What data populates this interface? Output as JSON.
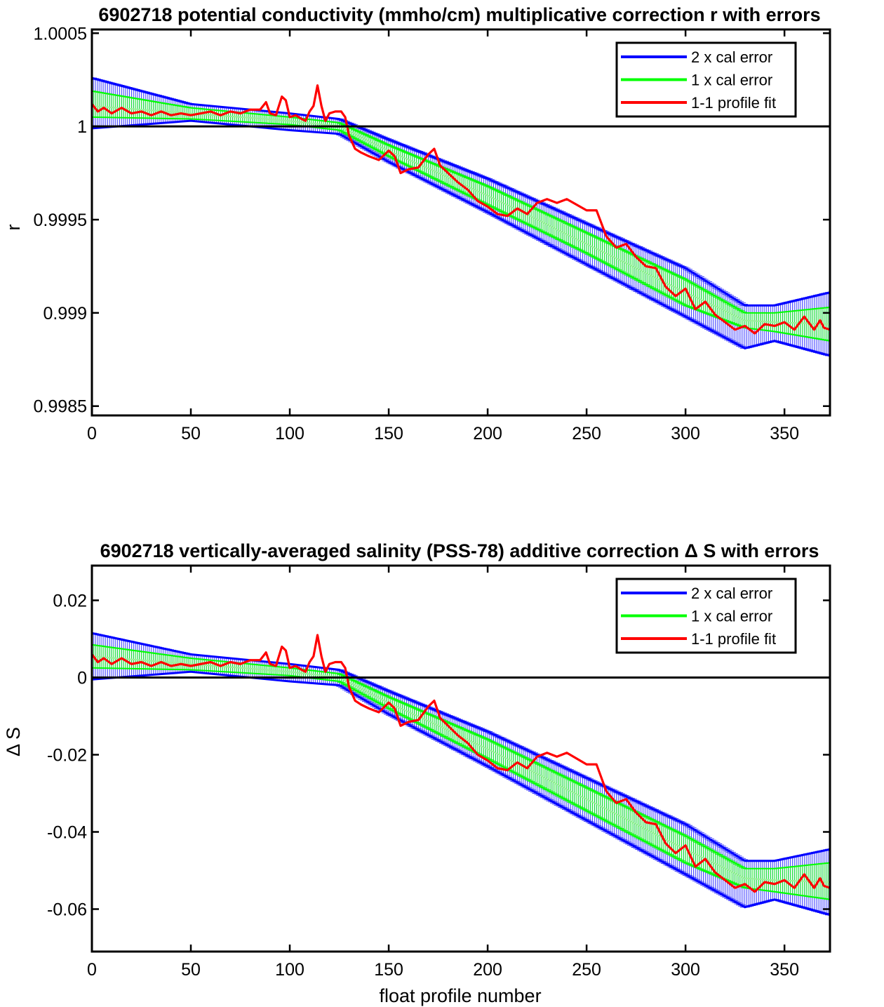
{
  "chart_data": [
    {
      "type": "line",
      "title": "6902718 potential conductivity (mmho/cm) multiplicative correction r with errors",
      "xlabel": "",
      "ylabel": "r",
      "xlim": [
        0,
        373
      ],
      "ylim": [
        0.99845,
        1.00052
      ],
      "xticks": [
        0,
        50,
        100,
        150,
        200,
        250,
        300,
        350
      ],
      "xtick_labels": [
        "0",
        "50",
        "100",
        "150",
        "200",
        "250",
        "300",
        "350"
      ],
      "yticks": [
        0.9985,
        0.999,
        0.9995,
        1,
        1.0005
      ],
      "ytick_labels": [
        "0.9985",
        "0.999",
        "0.9995",
        "1",
        "1.0005"
      ],
      "reference_line": 1,
      "legend_position": "top-right",
      "grid": false,
      "fit_curve": {
        "x": [
          0,
          50,
          100,
          125,
          150,
          200,
          250,
          300,
          330,
          345,
          373
        ],
        "y": [
          1.00011,
          1.00007,
          1.00003,
          1.0,
          0.99987,
          0.99963,
          0.99937,
          0.99911,
          0.99896,
          0.99895,
          0.99894
        ]
      },
      "error_bands": [
        {
          "name": "2 x cal error",
          "color": "#0000ff",
          "upper": [
            1.00026,
            1.00012,
            1.00007,
            1.00004,
            0.99993,
            0.99972,
            0.99948,
            0.99924,
            0.99904,
            0.99904,
            0.99911
          ],
          "lower": [
            0.99999,
            1.00003,
            0.99998,
            0.99996,
            0.99981,
            0.99954,
            0.99926,
            0.99898,
            0.99881,
            0.99885,
            0.99877
          ]
        },
        {
          "name": "1 x cal error",
          "color": "#00ff00",
          "upper": [
            1.00019,
            1.0001,
            1.00005,
            1.00002,
            0.9999,
            0.99968,
            0.99943,
            0.99918,
            0.999,
            0.999,
            0.99903
          ],
          "lower": [
            1.00005,
            1.00004,
            1.00001,
            0.99998,
            0.99984,
            0.99958,
            0.99932,
            0.99904,
            0.99892,
            0.9989,
            0.99885
          ]
        }
      ],
      "series": [
        {
          "name": "1-1 profile fit",
          "color": "#ff0000",
          "x": [
            0,
            3,
            6,
            10,
            15,
            20,
            25,
            30,
            35,
            40,
            45,
            50,
            55,
            60,
            65,
            70,
            75,
            80,
            85,
            88,
            90,
            93,
            96,
            98,
            100,
            103,
            106,
            108,
            110,
            112,
            114,
            116,
            118,
            120,
            123,
            126,
            128,
            130,
            133,
            136,
            140,
            145,
            150,
            153,
            156,
            160,
            165,
            170,
            173,
            176,
            180,
            185,
            190,
            195,
            200,
            205,
            210,
            215,
            220,
            225,
            230,
            235,
            240,
            245,
            250,
            255,
            260,
            265,
            270,
            275,
            280,
            285,
            290,
            295,
            300,
            305,
            310,
            315,
            320,
            325,
            330,
            335,
            340,
            345,
            350,
            355,
            360,
            365,
            368,
            370,
            373
          ],
          "y": [
            1.00012,
            1.00008,
            1.0001,
            1.00007,
            1.0001,
            1.00007,
            1.00008,
            1.00006,
            1.00008,
            1.00006,
            1.00007,
            1.00006,
            1.00007,
            1.00008,
            1.00006,
            1.00008,
            1.00007,
            1.00009,
            1.00009,
            1.00013,
            1.00007,
            1.00006,
            1.00016,
            1.00014,
            1.00005,
            1.00006,
            1.00004,
            1.00003,
            1.00008,
            1.00011,
            1.00022,
            1.00011,
            1.00003,
            1.00007,
            1.00008,
            1.00008,
            1.00005,
            0.99995,
            0.99988,
            0.99986,
            0.99984,
            0.99982,
            0.99987,
            0.99984,
            0.99975,
            0.99977,
            0.99978,
            0.99985,
            0.99988,
            0.99979,
            0.99975,
            0.9997,
            0.99966,
            0.9996,
            0.99957,
            0.99953,
            0.99952,
            0.99956,
            0.99953,
            0.99959,
            0.99961,
            0.99959,
            0.99961,
            0.99958,
            0.99955,
            0.99955,
            0.99941,
            0.99935,
            0.99937,
            0.9993,
            0.99925,
            0.99924,
            0.99914,
            0.99909,
            0.99913,
            0.99902,
            0.99906,
            0.99899,
            0.99895,
            0.99891,
            0.99893,
            0.99889,
            0.99894,
            0.99893,
            0.99895,
            0.99891,
            0.99898,
            0.99891,
            0.99896,
            0.99892,
            0.99891
          ]
        }
      ],
      "legend": [
        {
          "label": "2 x cal error",
          "color": "#0000ff"
        },
        {
          "label": "1 x cal error",
          "color": "#00ff00"
        },
        {
          "label": "1-1 profile fit",
          "color": "#ff0000"
        }
      ]
    },
    {
      "type": "line",
      "title": "6902718 vertically-averaged salinity (PSS-78) additive correction Δ S with errors",
      "xlabel": "float profile number",
      "ylabel": "Δ S",
      "xlim": [
        0,
        373
      ],
      "ylim": [
        -0.071,
        0.029
      ],
      "xticks": [
        0,
        50,
        100,
        150,
        200,
        250,
        300,
        350
      ],
      "xtick_labels": [
        "0",
        "50",
        "100",
        "150",
        "200",
        "250",
        "300",
        "350"
      ],
      "yticks": [
        -0.06,
        -0.04,
        -0.02,
        0,
        0.02
      ],
      "ytick_labels": [
        "-0.06",
        "-0.04",
        "-0.02",
        "0",
        "0.02"
      ],
      "reference_line": 0,
      "legend_position": "top-right",
      "grid": false,
      "fit_curve": {
        "x": [
          0,
          50,
          100,
          125,
          150,
          200,
          250,
          300,
          330,
          345,
          373
        ],
        "y": [
          0.0055,
          0.0035,
          0.0015,
          0.0,
          -0.0065,
          -0.0185,
          -0.0315,
          -0.0445,
          -0.052,
          -0.0525,
          -0.053
        ]
      },
      "error_bands": [
        {
          "name": "2 x cal error",
          "color": "#0000ff",
          "upper": [
            0.0115,
            0.006,
            0.0035,
            0.002,
            -0.0035,
            -0.014,
            -0.026,
            -0.038,
            -0.0475,
            -0.0475,
            -0.0445
          ],
          "lower": [
            -0.0005,
            0.0015,
            -0.001,
            -0.002,
            -0.0095,
            -0.023,
            -0.037,
            -0.051,
            -0.0595,
            -0.0575,
            -0.0615
          ]
        },
        {
          "name": "1 x cal error",
          "color": "#00ff00",
          "upper": [
            0.0085,
            0.005,
            0.0025,
            0.001,
            -0.005,
            -0.016,
            -0.0285,
            -0.041,
            -0.0495,
            -0.0495,
            -0.048
          ],
          "lower": [
            0.0025,
            0.002,
            0.0005,
            -0.001,
            -0.008,
            -0.021,
            -0.0345,
            -0.048,
            -0.0545,
            -0.0555,
            -0.0575
          ]
        }
      ],
      "series": [
        {
          "name": "1-1 profile fit",
          "color": "#ff0000",
          "x": [
            0,
            3,
            6,
            10,
            15,
            20,
            25,
            30,
            35,
            40,
            45,
            50,
            55,
            60,
            65,
            70,
            75,
            80,
            85,
            88,
            90,
            93,
            96,
            98,
            100,
            103,
            106,
            108,
            110,
            112,
            114,
            116,
            118,
            120,
            123,
            126,
            128,
            130,
            133,
            136,
            140,
            145,
            150,
            153,
            156,
            160,
            165,
            170,
            173,
            176,
            180,
            185,
            190,
            195,
            200,
            205,
            210,
            215,
            220,
            225,
            230,
            235,
            240,
            245,
            250,
            255,
            260,
            265,
            270,
            275,
            280,
            285,
            290,
            295,
            300,
            305,
            310,
            315,
            320,
            325,
            330,
            335,
            340,
            345,
            350,
            355,
            360,
            365,
            368,
            370,
            373
          ],
          "y": [
            0.006,
            0.004,
            0.005,
            0.0035,
            0.005,
            0.0035,
            0.004,
            0.003,
            0.004,
            0.003,
            0.0035,
            0.003,
            0.0035,
            0.004,
            0.003,
            0.004,
            0.0035,
            0.0045,
            0.0045,
            0.0065,
            0.0035,
            0.003,
            0.008,
            0.007,
            0.0025,
            0.003,
            0.002,
            0.0015,
            0.004,
            0.0055,
            0.011,
            0.0055,
            0.0015,
            0.0035,
            0.004,
            0.004,
            0.0025,
            -0.0025,
            -0.006,
            -0.007,
            -0.008,
            -0.009,
            -0.0065,
            -0.008,
            -0.0125,
            -0.0115,
            -0.011,
            -0.0075,
            -0.006,
            -0.0105,
            -0.0125,
            -0.015,
            -0.017,
            -0.02,
            -0.0215,
            -0.0235,
            -0.024,
            -0.022,
            -0.0235,
            -0.0205,
            -0.0195,
            -0.0205,
            -0.0195,
            -0.021,
            -0.0225,
            -0.0225,
            -0.0295,
            -0.0325,
            -0.0315,
            -0.035,
            -0.0375,
            -0.038,
            -0.043,
            -0.0455,
            -0.0435,
            -0.049,
            -0.047,
            -0.0505,
            -0.0525,
            -0.0545,
            -0.0535,
            -0.0555,
            -0.053,
            -0.0535,
            -0.0525,
            -0.0545,
            -0.051,
            -0.0545,
            -0.052,
            -0.054,
            -0.0545
          ]
        }
      ],
      "legend": [
        {
          "label": "2 x cal error",
          "color": "#0000ff"
        },
        {
          "label": "1 x cal error",
          "color": "#00ff00"
        },
        {
          "label": "1-1 profile fit",
          "color": "#ff0000"
        }
      ]
    }
  ]
}
